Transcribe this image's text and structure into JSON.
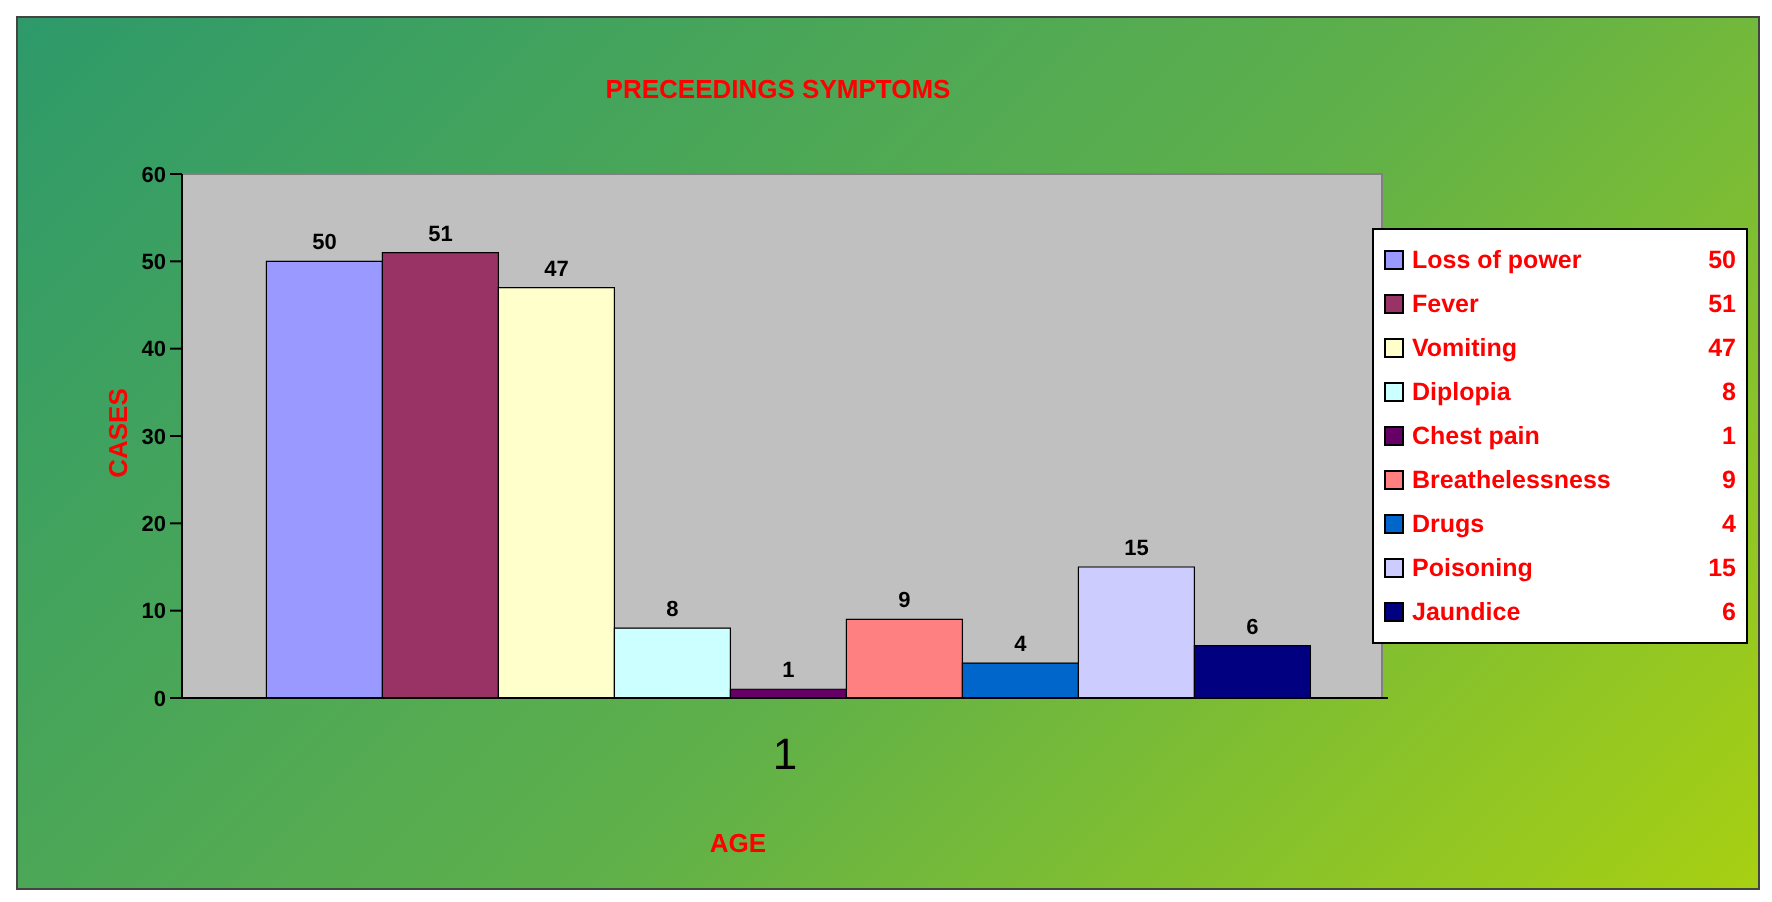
{
  "chart_data": {
    "type": "bar",
    "title": "PRECEEDINGS SYMPTOMS",
    "xlabel": "AGE",
    "ylabel": "CASES",
    "categories": [
      "1"
    ],
    "series": [
      {
        "name": "Loss of power",
        "color": "#9999ff",
        "values": [
          50
        ],
        "value_labels": [
          "50"
        ]
      },
      {
        "name": "Fever",
        "color": "#993366",
        "values": [
          51
        ],
        "value_labels": [
          "51"
        ]
      },
      {
        "name": "Vomiting",
        "color": "#ffffcc",
        "values": [
          47
        ],
        "value_labels": [
          "47"
        ]
      },
      {
        "name": "Diplopia",
        "color": "#ccffff",
        "values": [
          8
        ],
        "value_labels": [
          "8"
        ]
      },
      {
        "name": "Chest pain",
        "color": "#660066",
        "values": [
          1
        ],
        "value_labels": [
          "1"
        ]
      },
      {
        "name": "Breathelessness",
        "color": "#ff8080",
        "values": [
          9
        ],
        "value_labels": [
          "9"
        ]
      },
      {
        "name": "Drugs",
        "color": "#0066cc",
        "values": [
          4
        ],
        "value_labels": [
          "4"
        ]
      },
      {
        "name": "Poisoning",
        "color": "#ccccff",
        "values": [
          15
        ],
        "value_labels": [
          "15"
        ]
      },
      {
        "name": "Jaundice",
        "color": "#000080",
        "values": [
          6
        ],
        "value_labels": [
          "6"
        ]
      }
    ],
    "ylim": [
      0,
      60
    ],
    "yticks": [
      0,
      10,
      20,
      30,
      40,
      50,
      60
    ],
    "grid": false,
    "legend": "right"
  }
}
